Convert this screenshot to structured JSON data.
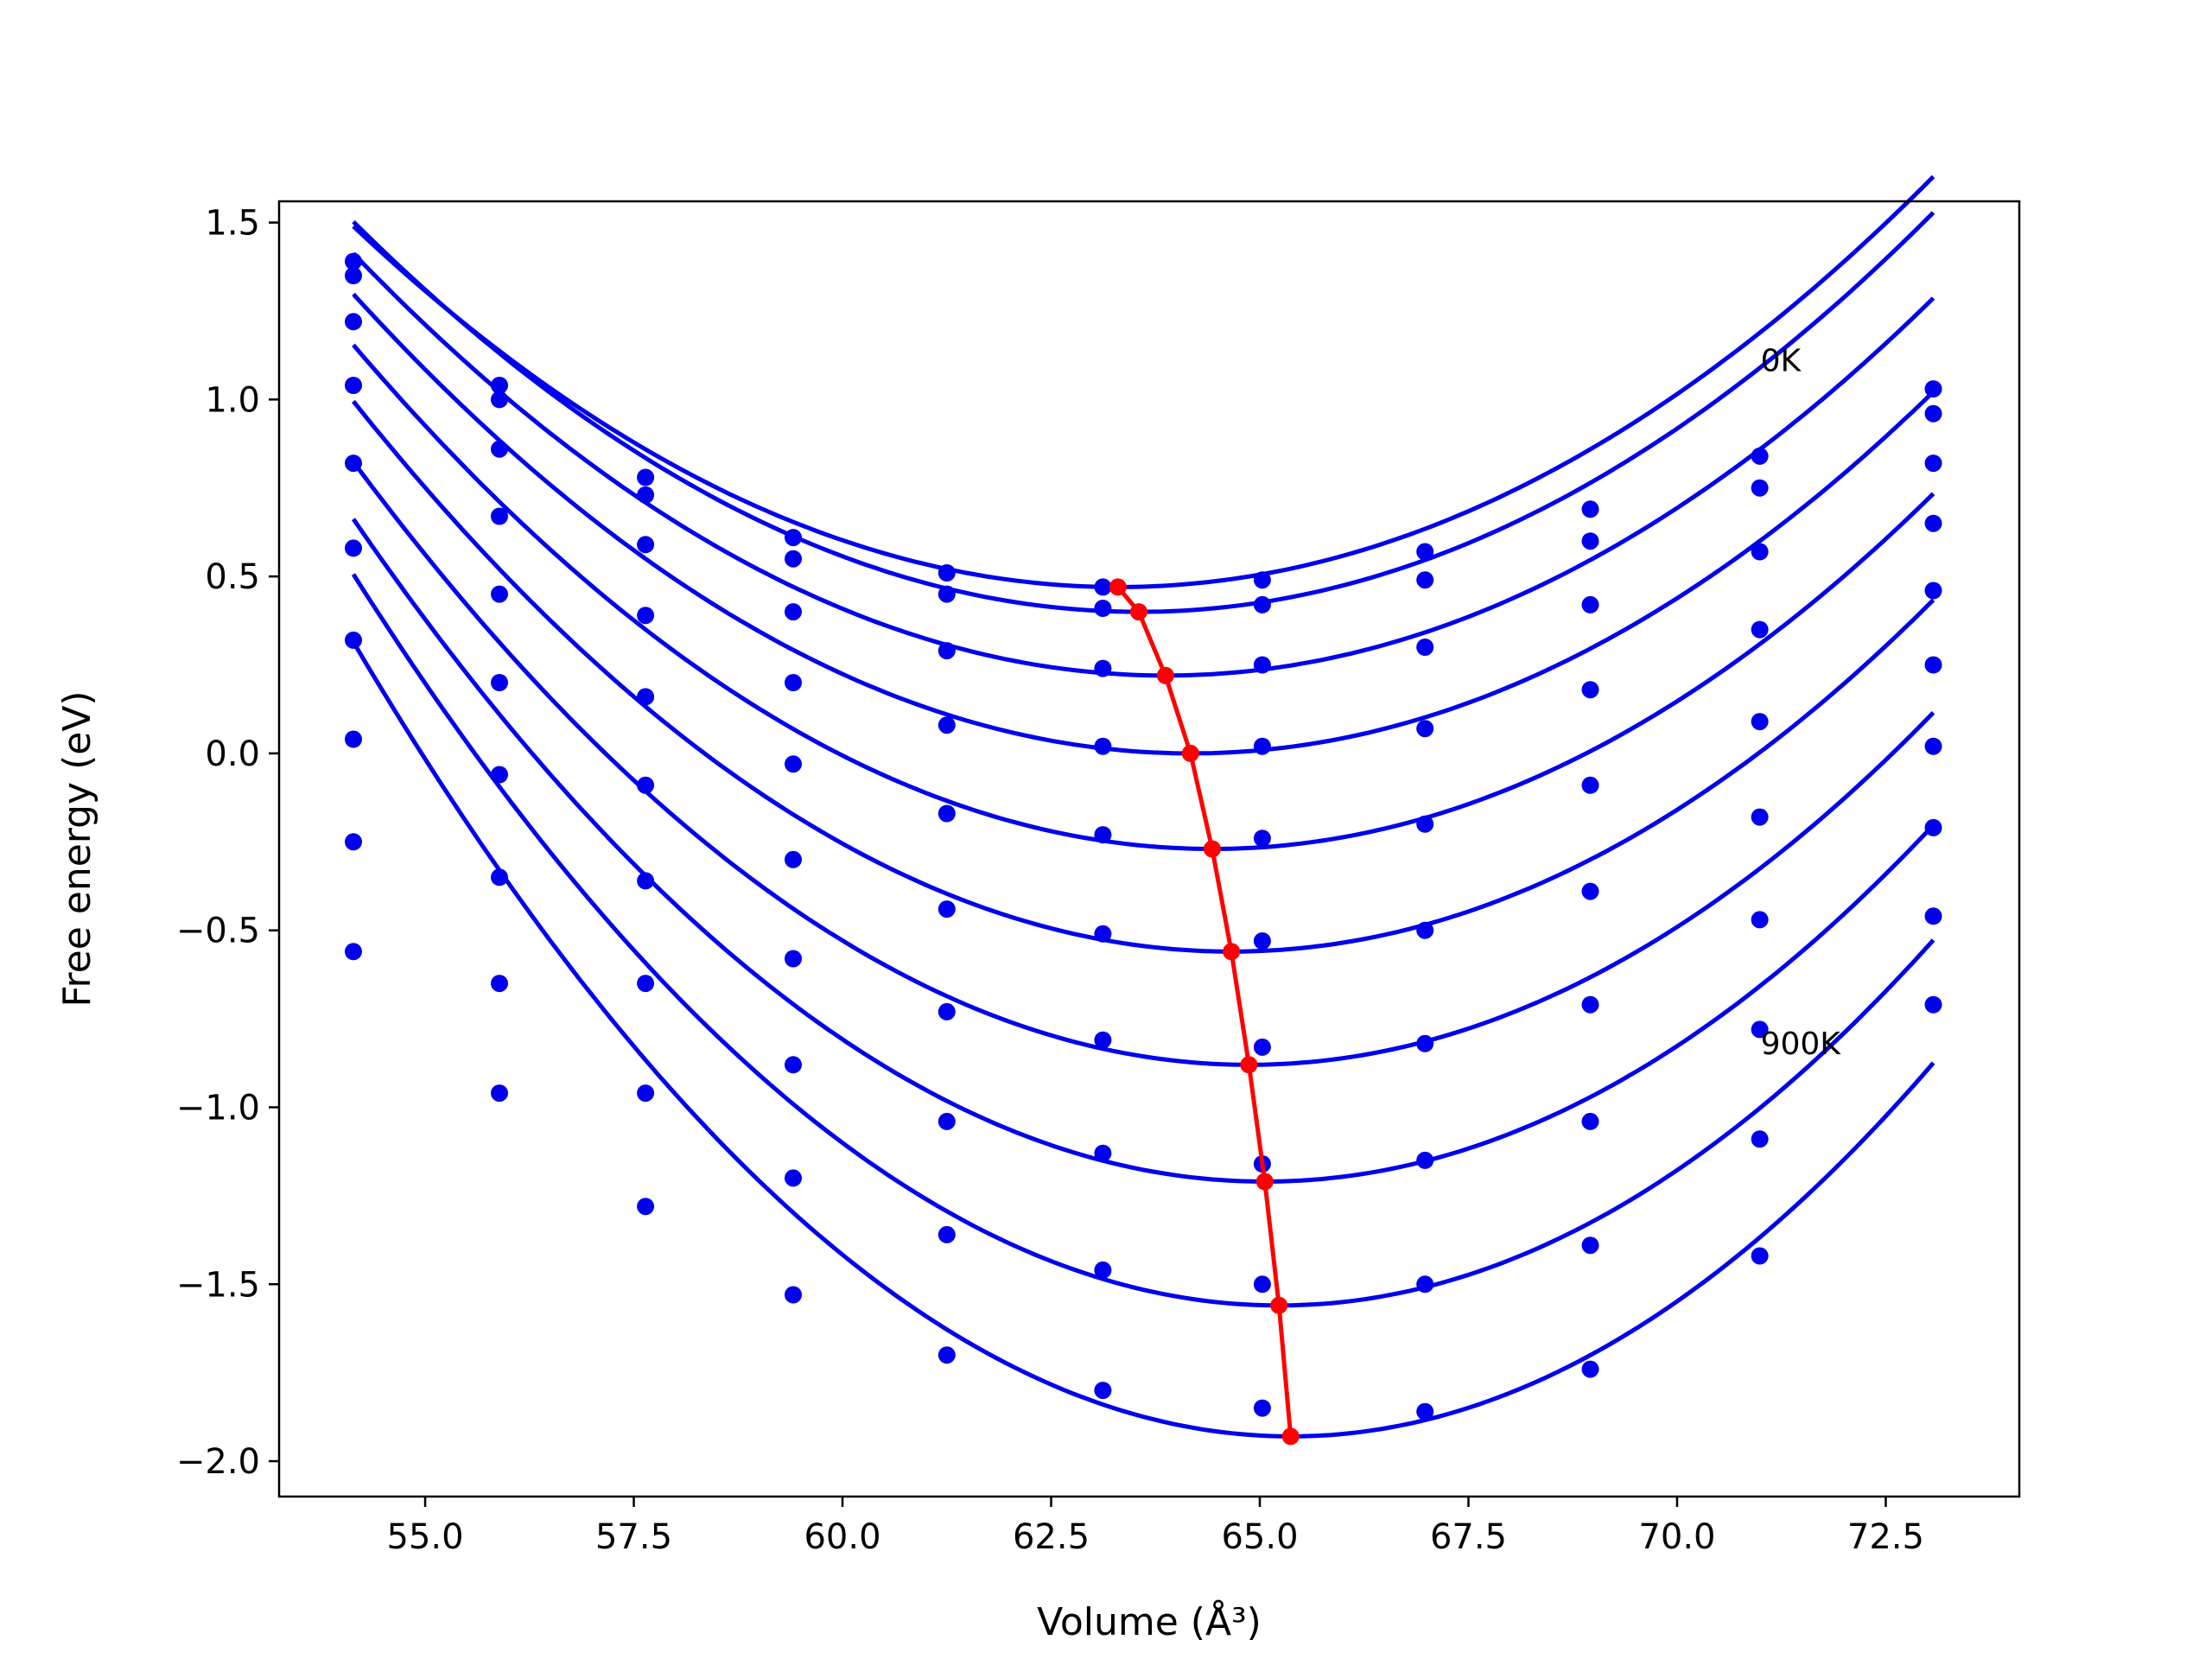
{
  "chart_data": {
    "type": "scatter",
    "title": "",
    "xlabel": "Volume (Å³)",
    "ylabel": "Free energy (eV)",
    "xlim": [
      53.25,
      74.1
    ],
    "ylim": [
      -2.1,
      1.56
    ],
    "x_ticks": [
      55.0,
      57.5,
      60.0,
      62.5,
      65.0,
      67.5,
      70.0,
      72.5
    ],
    "y_ticks": [
      1.5,
      1.0,
      0.5,
      0.0,
      -0.5,
      -1.0,
      -1.5,
      -2.0
    ],
    "x_tick_labels": [
      "55.0",
      "57.5",
      "60.0",
      "62.5",
      "65.0",
      "67.5",
      "70.0",
      "72.5"
    ],
    "y_tick_labels": [
      "1.5",
      "1.0",
      "0.5",
      "0.0",
      "−0.5",
      "−1.0",
      "−1.5",
      "−2.0"
    ],
    "grid": false,
    "x": [
      54.14,
      55.89,
      57.64,
      59.41,
      61.25,
      63.12,
      65.03,
      66.98,
      68.96,
      70.99,
      73.07
    ],
    "series": [
      {
        "points": [
          1.39,
          1.04,
          0.78,
          0.61,
          0.51,
          0.47,
          0.49,
          0.57,
          0.69,
          0.84,
          1.03
        ],
        "fit": {
          "vmin": 63.3,
          "fmin": 0.47,
          "a": 0.01215
        }
      },
      {
        "points": [
          1.35,
          1.0,
          0.73,
          0.55,
          0.45,
          0.41,
          0.42,
          0.49,
          0.6,
          0.75,
          0.96
        ],
        "fit": {
          "vmin": 63.55,
          "fmin": 0.4,
          "a": 0.01245
        }
      },
      {
        "points": [
          1.22,
          0.86,
          0.59,
          0.4,
          0.29,
          0.24,
          0.25,
          0.3,
          0.42,
          0.57,
          0.82
        ],
        "fit": {
          "vmin": 63.87,
          "fmin": 0.22,
          "a": 0.0126
        }
      },
      {
        "points": [
          1.04,
          0.67,
          0.39,
          0.2,
          0.08,
          0.02,
          0.02,
          0.07,
          0.18,
          0.35,
          0.65
        ],
        "fit": {
          "vmin": 64.17,
          "fmin": 0.0,
          "a": 0.0129
        }
      },
      {
        "points": [
          0.82,
          0.45,
          0.16,
          -0.03,
          -0.17,
          -0.23,
          -0.24,
          -0.2,
          -0.09,
          0.09,
          0.46
        ],
        "fit": {
          "vmin": 64.43,
          "fmin": -0.27,
          "a": 0.01345
        }
      },
      {
        "points": [
          0.58,
          0.2,
          -0.09,
          -0.3,
          -0.44,
          -0.51,
          -0.53,
          -0.5,
          -0.39,
          -0.18,
          0.25
        ],
        "fit": {
          "vmin": 64.66,
          "fmin": -0.56,
          "a": 0.01405
        }
      },
      {
        "points": [
          0.32,
          -0.06,
          -0.36,
          -0.58,
          -0.73,
          -0.81,
          -0.83,
          -0.82,
          -0.71,
          -0.47,
          0.02
        ],
        "fit": {
          "vmin": 64.87,
          "fmin": -0.88,
          "a": 0.0148
        }
      },
      {
        "points": [
          0.04,
          -0.35,
          -0.65,
          -0.88,
          -1.04,
          -1.13,
          -1.16,
          -1.15,
          -1.04,
          -0.78,
          -0.21
        ],
        "fit": {
          "vmin": 65.06,
          "fmin": -1.21,
          "a": 0.0157
        }
      },
      {
        "points": [
          -0.25,
          -0.65,
          -0.96,
          -1.2,
          -1.36,
          -1.46,
          -1.5,
          -1.5,
          -1.39,
          -1.09,
          -0.46
        ],
        "fit": {
          "vmin": 65.23,
          "fmin": -1.56,
          "a": 0.0168
        }
      },
      {
        "points": [
          -0.56,
          -0.96,
          -1.28,
          -1.53,
          -1.7,
          -1.8,
          -1.85,
          -1.86,
          -1.74,
          -1.42,
          -0.71
        ],
        "fit": {
          "vmin": 65.37,
          "fmin": -1.93,
          "a": 0.0178
        }
      }
    ],
    "minima_path": {
      "x": [
        63.3,
        63.55,
        63.87,
        64.17,
        64.43,
        64.66,
        64.87,
        65.06,
        65.23,
        65.37
      ],
      "y": [
        0.47,
        0.4,
        0.22,
        0.0,
        -0.27,
        -0.56,
        -0.88,
        -1.21,
        -1.56,
        -1.93
      ]
    },
    "annotations": [
      {
        "text": "0K",
        "x": 71.0,
        "y": 1.08
      },
      {
        "text": "900K",
        "x": 71.0,
        "y": -0.85
      }
    ],
    "colors": {
      "curves": "#0000ee",
      "points": "#0000ee",
      "minima": "#ff0000",
      "axes": "#000000"
    }
  }
}
